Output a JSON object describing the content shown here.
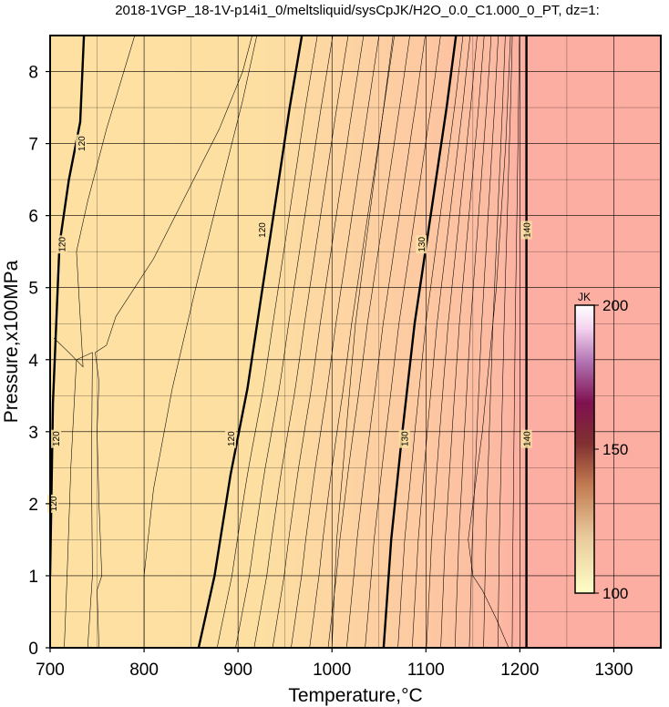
{
  "chart_data": {
    "type": "heatmap",
    "title": "2018-1VGP_18-1V-p14i1_0/meltsliquid/sysCpJK/H2O_0.0_C1.000_0_PT, dz=1:",
    "xlabel": "Temperature,°C",
    "ylabel": "Pressure,x100MPa",
    "xlim": [
      700,
      1350
    ],
    "ylim": [
      0,
      8.5
    ],
    "xticks": [
      "700",
      "800",
      "900",
      "1000",
      "1100",
      "1200",
      "1300"
    ],
    "yticks": [
      "0",
      "1",
      "2",
      "3",
      "4",
      "5",
      "6",
      "7",
      "8"
    ],
    "grid": true,
    "colorbar": {
      "unit": "JK",
      "min": 100,
      "max": 200,
      "ticks": [
        "100",
        "150",
        "200"
      ],
      "colors": [
        "#ffffc8",
        "#e8c89a",
        "#c07850",
        "#803030",
        "#801050",
        "#b070b0",
        "#f4d4f0",
        "#ffffff"
      ]
    },
    "field_colors": {
      "low": "#fde0a2",
      "high": "#fcaea2"
    },
    "field_values": {
      "low": 118,
      "high": 140
    },
    "major_contours": [
      {
        "level": 120,
        "label": "120",
        "points": [
          [
            700,
            1.0
          ],
          [
            703,
            3.4
          ],
          [
            710,
            5.6
          ],
          [
            720,
            6.5
          ],
          [
            732,
            7.3
          ],
          [
            736,
            8.5
          ]
        ]
      },
      {
        "level": 120,
        "label": "120",
        "points": [
          [
            858,
            0.0
          ],
          [
            875,
            1.0
          ],
          [
            892,
            2.4
          ],
          [
            910,
            3.6
          ],
          [
            925,
            4.9
          ],
          [
            940,
            6.2
          ],
          [
            955,
            7.5
          ],
          [
            968,
            8.5
          ]
        ]
      },
      {
        "level": 130,
        "label": "130",
        "points": [
          [
            1055,
            0.0
          ],
          [
            1063,
            1.5
          ],
          [
            1075,
            3.0
          ],
          [
            1088,
            4.5
          ],
          [
            1105,
            6.0
          ],
          [
            1122,
            7.5
          ],
          [
            1132,
            8.5
          ]
        ]
      },
      {
        "level": 140,
        "label": "140",
        "points": [
          [
            1207,
            0.0
          ],
          [
            1207,
            8.5
          ]
        ]
      }
    ],
    "contour_labels": [
      {
        "text": "120",
        "x": 703,
        "y": 2.0
      },
      {
        "text": "120",
        "x": 706,
        "y": 2.9
      },
      {
        "text": "120",
        "x": 712,
        "y": 5.6
      },
      {
        "text": "120",
        "x": 733,
        "y": 7.0
      },
      {
        "text": "120",
        "x": 892,
        "y": 2.9
      },
      {
        "text": "120",
        "x": 925,
        "y": 5.8
      },
      {
        "text": "130",
        "x": 1077,
        "y": 2.9
      },
      {
        "text": "130",
        "x": 1095,
        "y": 5.6
      },
      {
        "text": "140",
        "x": 1207,
        "y": 2.9
      },
      {
        "text": "140",
        "x": 1207,
        "y": 5.8
      }
    ]
  }
}
